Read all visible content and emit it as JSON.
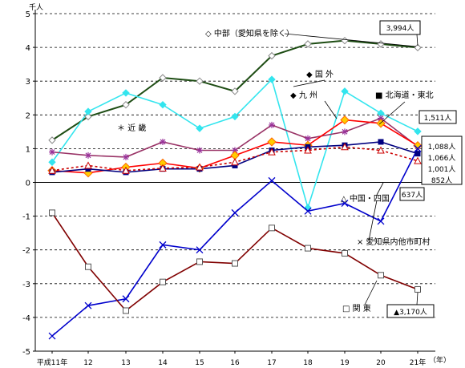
{
  "chart_data": {
    "type": "line",
    "y_unit": "千人",
    "x_unit": "（年）",
    "categories": [
      "平成11年",
      "12",
      "13",
      "14",
      "15",
      "16",
      "17",
      "18",
      "19",
      "20",
      "21年"
    ],
    "ylim": [
      -5,
      5
    ],
    "y_ticks": [
      5,
      4,
      3,
      2,
      1,
      0,
      -1,
      -2,
      -3,
      -4,
      -5
    ],
    "grid": true,
    "series": [
      {
        "name": "中部（愛知県を除く）",
        "color": "#1e4d14",
        "marker": "diamond-open",
        "values": [
          1.25,
          1.95,
          2.3,
          3.1,
          3.0,
          2.7,
          3.75,
          4.1,
          4.2,
          4.1,
          3.994
        ]
      },
      {
        "name": "国外",
        "color": "#33e5ee",
        "marker": "diamond-filled",
        "values": [
          0.6,
          2.1,
          2.65,
          2.3,
          1.6,
          1.95,
          3.05,
          -0.75,
          2.7,
          2.05,
          1.511
        ]
      },
      {
        "name": "近畿",
        "color": "#993366",
        "marker": "asterisk",
        "values": [
          0.9,
          0.8,
          0.75,
          1.2,
          0.95,
          0.95,
          1.7,
          1.3,
          1.5,
          1.9,
          1.066
        ]
      },
      {
        "name": "九州",
        "color": "#ff0000",
        "marker": "diamond-yellow",
        "values": [
          0.35,
          0.28,
          0.45,
          0.57,
          0.42,
          0.8,
          1.2,
          1.1,
          1.85,
          1.75,
          1.088
        ]
      },
      {
        "name": "北海道・東北",
        "color": "#000080",
        "marker": "square",
        "values": [
          0.3,
          0.4,
          0.3,
          0.4,
          0.4,
          0.5,
          0.95,
          1.05,
          1.1,
          1.2,
          0.852
        ]
      },
      {
        "name": "中国・四国",
        "color": "#cc0000",
        "marker": "triangle-open",
        "dashed": true,
        "values": [
          0.35,
          0.5,
          0.35,
          0.42,
          0.45,
          0.6,
          0.9,
          0.95,
          1.05,
          0.95,
          0.637
        ]
      },
      {
        "name": "愛知県内他市町村",
        "color": "#0000cc",
        "marker": "x",
        "values": [
          -4.55,
          -3.65,
          -3.45,
          -1.85,
          -2.0,
          -0.9,
          0.05,
          -0.85,
          -0.62,
          -1.15,
          1.001
        ]
      },
      {
        "name": "関東",
        "color": "#800000",
        "marker": "square-open",
        "values": [
          -0.9,
          -2.5,
          -3.8,
          -2.95,
          -2.35,
          -2.4,
          -1.35,
          -1.95,
          -2.1,
          -2.75,
          -3.17
        ]
      }
    ],
    "annotations": {
      "label_3994": "3,994人",
      "label_1511": "1,511人",
      "label_1088": "1,088人",
      "label_1066": "1,066人",
      "label_1001": "1,001人",
      "label_852": "852人",
      "label_637": "637人",
      "label_3170": "▲3,170人",
      "legend_chubu": "◇ 中部（愛知県を除く）",
      "legend_kokugai": "◆ 国 外",
      "legend_kyushu": "◆ 九 州",
      "legend_hokkaido": "■ 北海道・東北",
      "legend_kinki": "＊ 近 畿",
      "legend_chugoku": "△ 中国・四国",
      "legend_aichi": "× 愛知県内他市町村",
      "legend_kanto": "□ 関 東"
    }
  }
}
